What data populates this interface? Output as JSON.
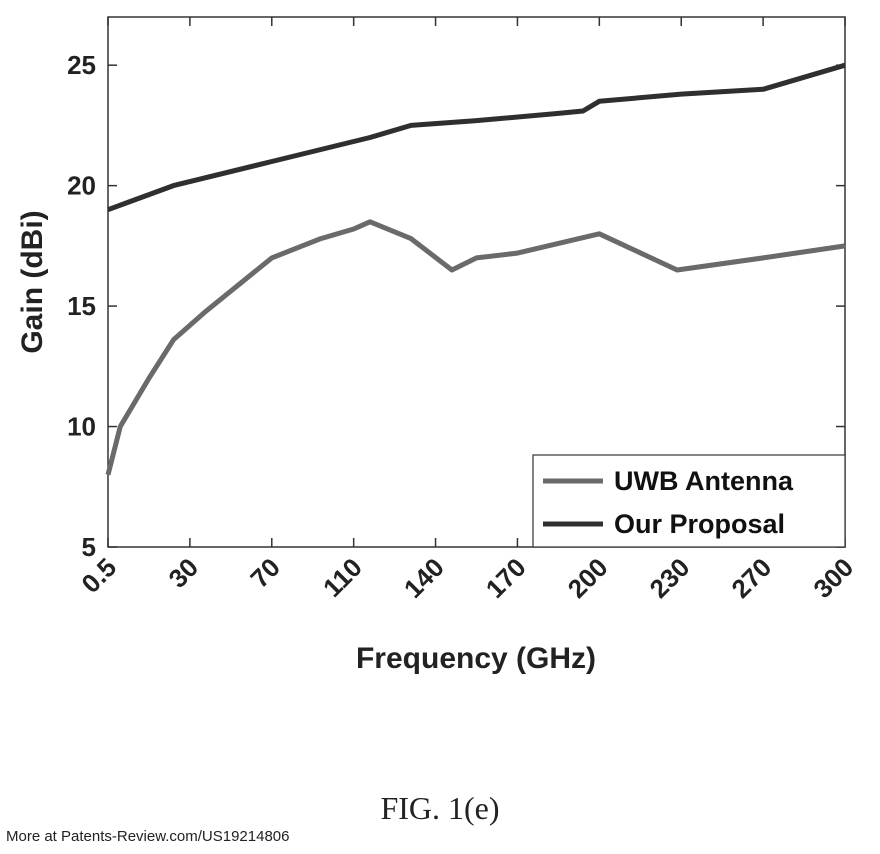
{
  "chart_data": {
    "type": "line",
    "xlabel": "Frequency (GHz)",
    "ylabel": "Gain (dBi)",
    "categories": [
      "0.5",
      "30",
      "70",
      "110",
      "140",
      "170",
      "200",
      "230",
      "270",
      "300"
    ],
    "ylim": [
      5,
      27
    ],
    "yticks": [
      5,
      10,
      15,
      20,
      25
    ],
    "grid": false,
    "legend_position": "bottom-right",
    "series": [
      {
        "name": "UWB Antenna",
        "color": "#6a6a6a",
        "points": [
          [
            0,
            8.0
          ],
          [
            0.15,
            10.0
          ],
          [
            0.5,
            12.0
          ],
          [
            0.8,
            13.6
          ],
          [
            1.2,
            14.8
          ],
          [
            2.0,
            17.0
          ],
          [
            2.6,
            17.8
          ],
          [
            3.0,
            18.2
          ],
          [
            3.2,
            18.5
          ],
          [
            3.7,
            17.8
          ],
          [
            4.2,
            16.5
          ],
          [
            4.5,
            17.0
          ],
          [
            5.0,
            17.2
          ],
          [
            6.0,
            18.0
          ],
          [
            6.95,
            16.5
          ],
          [
            8.0,
            17.0
          ],
          [
            9.0,
            17.5
          ]
        ]
      },
      {
        "name": "Our Proposal",
        "color": "#2f2f2f",
        "points": [
          [
            0,
            19.0
          ],
          [
            0.8,
            20.0
          ],
          [
            2.0,
            21.0
          ],
          [
            3.2,
            22.0
          ],
          [
            3.7,
            22.5
          ],
          [
            4.5,
            22.7
          ],
          [
            5.5,
            23.0
          ],
          [
            5.8,
            23.1
          ],
          [
            6.0,
            23.5
          ],
          [
            7.0,
            23.8
          ],
          [
            8.0,
            24.0
          ],
          [
            9.0,
            25.0
          ]
        ]
      }
    ]
  },
  "caption": "FIG. 1(e)",
  "footer": "More at Patents-Review.com/US19214806"
}
